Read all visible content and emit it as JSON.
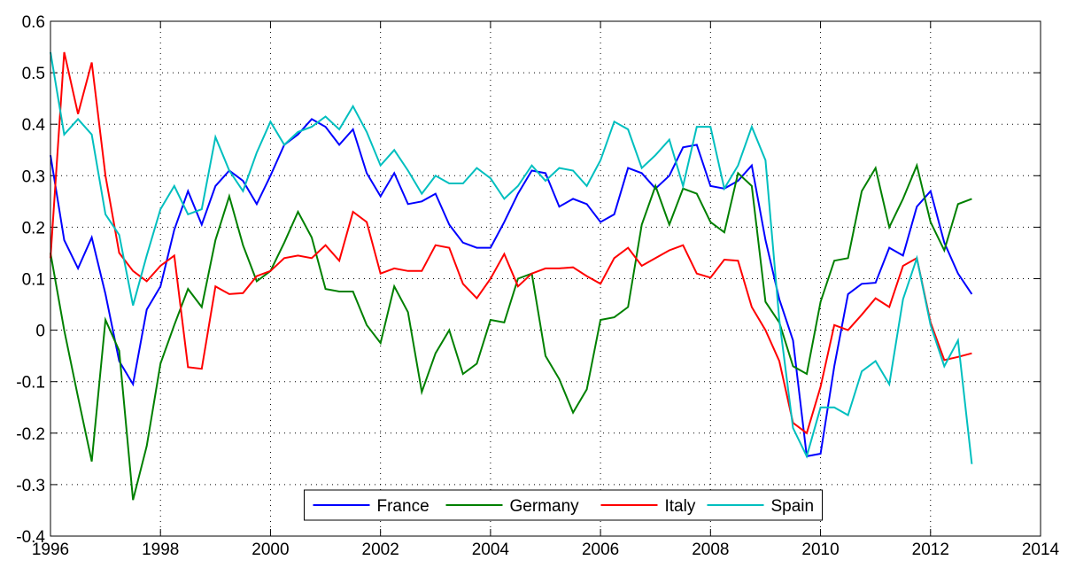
{
  "chart_data": {
    "type": "line",
    "x": [
      1996,
      1996.25,
      1996.5,
      1996.75,
      1997,
      1997.25,
      1997.5,
      1997.75,
      1998,
      1998.25,
      1998.5,
      1998.75,
      1999,
      1999.25,
      1999.5,
      1999.75,
      2000,
      2000.25,
      2000.5,
      2000.75,
      2001,
      2001.25,
      2001.5,
      2001.75,
      2002,
      2002.25,
      2002.5,
      2002.75,
      2003,
      2003.25,
      2003.5,
      2003.75,
      2004,
      2004.25,
      2004.5,
      2004.75,
      2005,
      2005.25,
      2005.5,
      2005.75,
      2006,
      2006.25,
      2006.5,
      2006.75,
      2007,
      2007.25,
      2007.5,
      2007.75,
      2008,
      2008.25,
      2008.5,
      2008.75,
      2009,
      2009.25,
      2009.5,
      2009.75,
      2010,
      2010.25,
      2010.5,
      2010.75,
      2011,
      2011.25,
      2011.5,
      2011.75,
      2012,
      2012.25,
      2012.5,
      2012.75
    ],
    "series": [
      {
        "name": "France",
        "color": "#0000ff",
        "values": [
          0.34,
          0.175,
          0.12,
          0.18,
          0.07,
          -0.06,
          -0.105,
          0.04,
          0.085,
          0.195,
          0.27,
          0.205,
          0.28,
          0.31,
          0.29,
          0.245,
          0.3,
          0.36,
          0.38,
          0.41,
          0.395,
          0.36,
          0.39,
          0.305,
          0.26,
          0.305,
          0.245,
          0.25,
          0.265,
          0.205,
          0.17,
          0.16,
          0.16,
          0.21,
          0.265,
          0.31,
          0.305,
          0.24,
          0.255,
          0.245,
          0.21,
          0.225,
          0.315,
          0.305,
          0.275,
          0.3,
          0.355,
          0.36,
          0.28,
          0.275,
          0.29,
          0.32,
          0.175,
          0.06,
          -0.02,
          -0.245,
          -0.24,
          -0.07,
          0.07,
          0.09,
          0.092,
          0.16,
          0.145,
          0.24,
          0.27,
          0.17,
          0.11,
          0.07
        ]
      },
      {
        "name": "Germany",
        "color": "#008000",
        "values": [
          0.15,
          0.0,
          -0.13,
          -0.255,
          0.02,
          -0.04,
          -0.33,
          -0.225,
          -0.065,
          0.01,
          0.08,
          0.045,
          0.175,
          0.26,
          0.165,
          0.095,
          0.115,
          0.17,
          0.23,
          0.18,
          0.08,
          0.075,
          0.075,
          0.01,
          -0.025,
          0.085,
          0.035,
          -0.12,
          -0.045,
          0.0,
          -0.085,
          -0.065,
          0.02,
          0.015,
          0.1,
          0.11,
          -0.05,
          -0.095,
          -0.16,
          -0.115,
          0.02,
          0.025,
          0.045,
          0.205,
          0.28,
          0.205,
          0.275,
          0.265,
          0.21,
          0.19,
          0.305,
          0.28,
          0.055,
          0.015,
          -0.07,
          -0.085,
          0.055,
          0.135,
          0.14,
          0.27,
          0.315,
          0.2,
          0.255,
          0.32,
          0.21,
          0.155,
          0.245,
          0.255
        ]
      },
      {
        "name": "Italy",
        "color": "#ff0000",
        "values": [
          0.14,
          0.54,
          0.42,
          0.52,
          0.3,
          0.15,
          0.115,
          0.095,
          0.125,
          0.145,
          -0.072,
          -0.075,
          0.085,
          0.07,
          0.072,
          0.105,
          0.115,
          0.14,
          0.145,
          0.14,
          0.165,
          0.135,
          0.23,
          0.21,
          0.11,
          0.12,
          0.115,
          0.115,
          0.165,
          0.16,
          0.09,
          0.062,
          0.1,
          0.148,
          0.085,
          0.11,
          0.12,
          0.12,
          0.122,
          0.105,
          0.09,
          0.14,
          0.16,
          0.125,
          0.14,
          0.155,
          0.165,
          0.11,
          0.102,
          0.137,
          0.135,
          0.045,
          0.0,
          -0.06,
          -0.18,
          -0.2,
          -0.11,
          0.01,
          0.0,
          0.03,
          0.062,
          0.045,
          0.125,
          0.14,
          0.015,
          -0.058,
          -0.052,
          -0.045
        ]
      },
      {
        "name": "Spain",
        "color": "#00bfbf",
        "values": [
          0.54,
          0.38,
          0.41,
          0.38,
          0.225,
          0.185,
          0.048,
          0.145,
          0.235,
          0.28,
          0.225,
          0.235,
          0.375,
          0.31,
          0.27,
          0.345,
          0.405,
          0.36,
          0.385,
          0.395,
          0.415,
          0.39,
          0.435,
          0.385,
          0.32,
          0.35,
          0.31,
          0.265,
          0.3,
          0.285,
          0.285,
          0.315,
          0.295,
          0.255,
          0.28,
          0.32,
          0.29,
          0.315,
          0.31,
          0.28,
          0.33,
          0.405,
          0.39,
          0.315,
          0.34,
          0.37,
          0.28,
          0.395,
          0.395,
          0.275,
          0.32,
          0.395,
          0.33,
          0.02,
          -0.19,
          -0.245,
          -0.15,
          -0.15,
          -0.165,
          -0.08,
          -0.06,
          -0.105,
          0.06,
          0.14,
          0.01,
          -0.07,
          -0.02,
          -0.26
        ]
      }
    ],
    "xlim": [
      1996,
      2014
    ],
    "xticks": [
      1996,
      1998,
      2000,
      2002,
      2004,
      2006,
      2008,
      2010,
      2012,
      2014
    ],
    "ylim": [
      -0.4,
      0.6
    ],
    "yticks": [
      -0.4,
      -0.3,
      -0.2,
      -0.1,
      0,
      0.1,
      0.2,
      0.3,
      0.4,
      0.5,
      0.6
    ],
    "grid": true,
    "legend": "bottom"
  }
}
